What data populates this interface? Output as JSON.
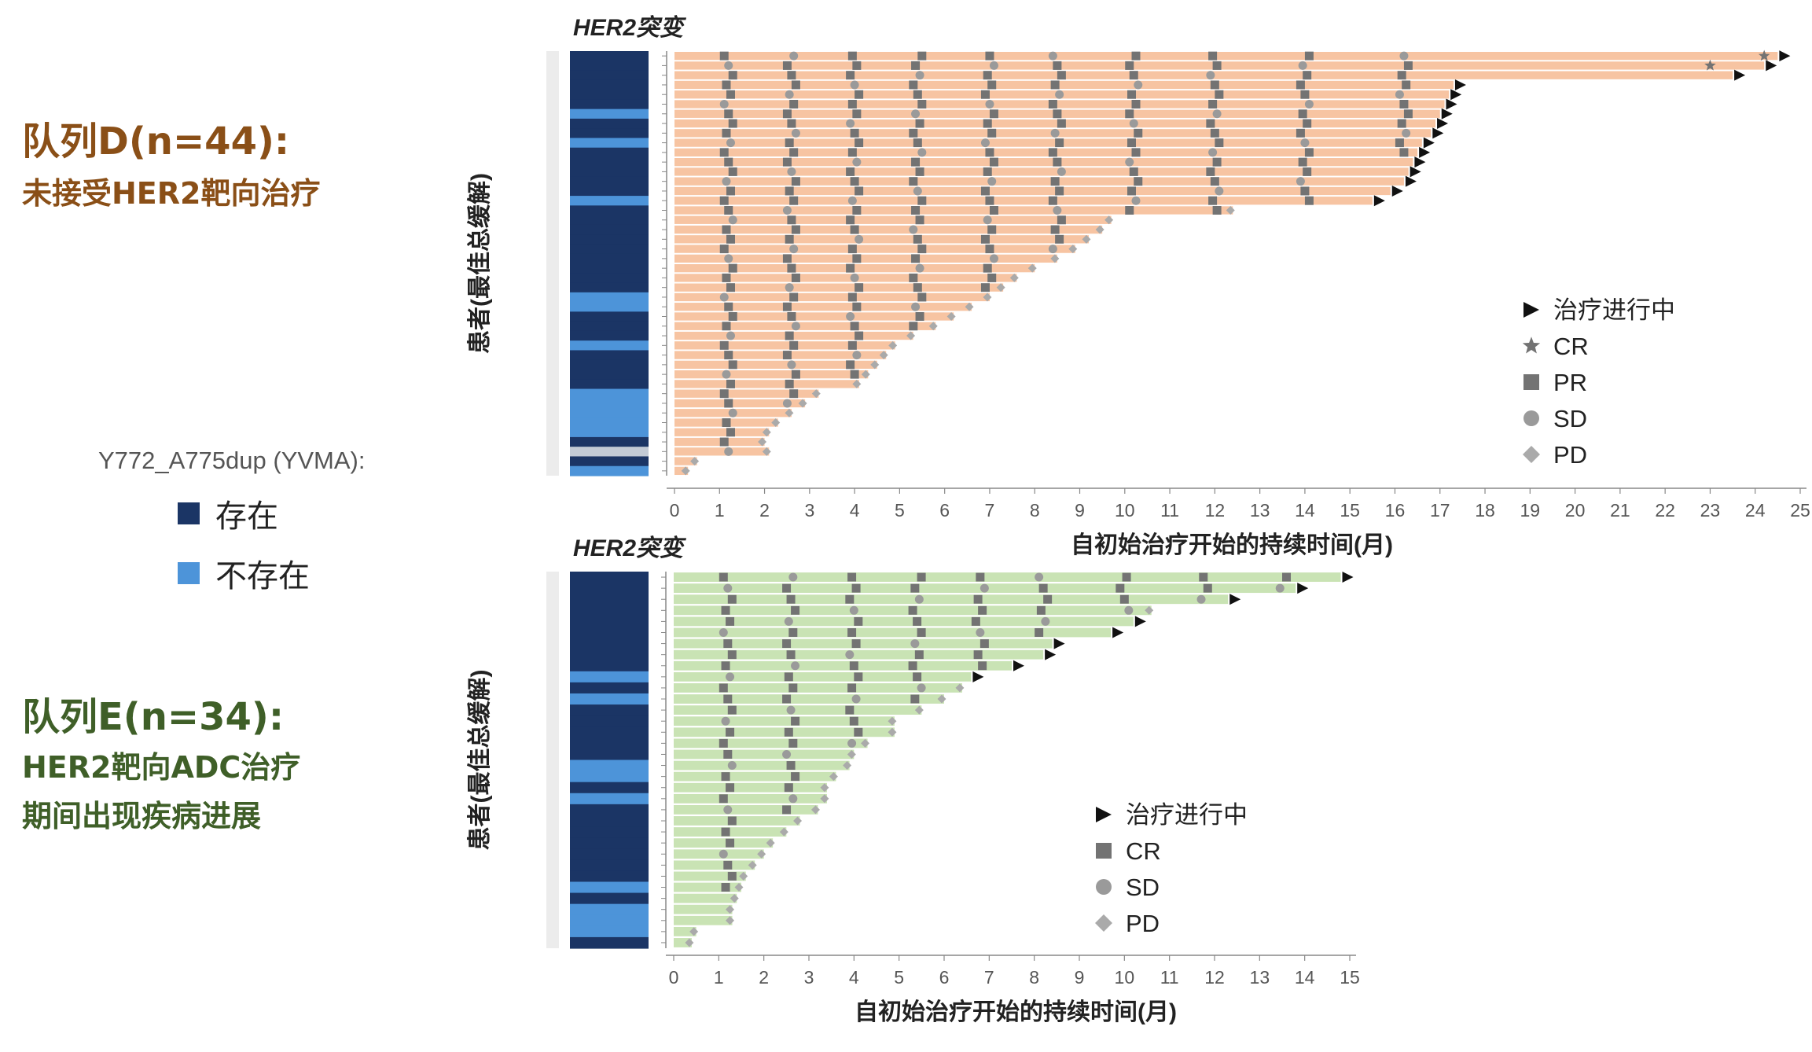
{
  "colors": {
    "present": "#1b3565",
    "absent": "#4d94d9",
    "other": "#c3cbd6",
    "barD": "#f7c4a2",
    "barE": "#c9e3b4",
    "marker": "#737373",
    "cohortD_text": "#8a4f17",
    "cohortE_text": "#3f5f28"
  },
  "left": {
    "cohortD_title": "队列D(n=44):",
    "cohortD_sub": "未接受HER2靶向治疗",
    "cohortE_title": "队列E(n=34):",
    "cohortE_sub1": "HER2靶向ADC治疗",
    "cohortE_sub2": "期间出现疾病进展"
  },
  "mutation_legend": {
    "title": "Y772_A775dup (YVMA):",
    "present": "存在",
    "absent": "不存在"
  },
  "chart_data": [
    {
      "type": "swimmer",
      "strip_title": "HER2突变",
      "xlabel": "自初始治疗开始的持续时间(月)",
      "ylabel": "患者(最佳总缓解)",
      "xlim": [
        0,
        25
      ],
      "xticks": [
        "0",
        "1",
        "2",
        "3",
        "4",
        "5",
        "6",
        "7",
        "8",
        "9",
        "10",
        "11",
        "12",
        "13",
        "14",
        "15",
        "16",
        "17",
        "18",
        "19",
        "20",
        "21",
        "22",
        "23",
        "24",
        "25"
      ],
      "legend": [
        {
          "symbol": "arrow",
          "label": "治疗进行中"
        },
        {
          "symbol": "star",
          "label": "CR"
        },
        {
          "symbol": "square",
          "label": "PR"
        },
        {
          "symbol": "circle",
          "label": "SD"
        },
        {
          "symbol": "diamond",
          "label": "PD"
        }
      ],
      "legend_position": "right",
      "patients": [
        {
          "duration": 24.5,
          "ongoing": true,
          "mutation": "present"
        },
        {
          "duration": 24.2,
          "ongoing": true,
          "mutation": "present"
        },
        {
          "duration": 23.5,
          "ongoing": true,
          "mutation": "present"
        },
        {
          "duration": 17.3,
          "ongoing": true,
          "mutation": "present"
        },
        {
          "duration": 17.2,
          "ongoing": true,
          "mutation": "present"
        },
        {
          "duration": 17.1,
          "ongoing": true,
          "mutation": "present"
        },
        {
          "duration": 17.0,
          "ongoing": true,
          "mutation": "absent"
        },
        {
          "duration": 16.9,
          "ongoing": true,
          "mutation": "present"
        },
        {
          "duration": 16.8,
          "ongoing": true,
          "mutation": "present"
        },
        {
          "duration": 16.6,
          "ongoing": true,
          "mutation": "absent"
        },
        {
          "duration": 16.5,
          "ongoing": true,
          "mutation": "present"
        },
        {
          "duration": 16.4,
          "ongoing": true,
          "mutation": "present"
        },
        {
          "duration": 16.3,
          "ongoing": true,
          "mutation": "present"
        },
        {
          "duration": 16.2,
          "ongoing": true,
          "mutation": "present"
        },
        {
          "duration": 15.9,
          "ongoing": true,
          "mutation": "present"
        },
        {
          "duration": 15.5,
          "ongoing": true,
          "mutation": "absent"
        },
        {
          "duration": 12.4,
          "ongoing": false,
          "mutation": "present"
        },
        {
          "duration": 9.7,
          "ongoing": false,
          "mutation": "present"
        },
        {
          "duration": 9.5,
          "ongoing": false,
          "mutation": "present"
        },
        {
          "duration": 9.2,
          "ongoing": false,
          "mutation": "present"
        },
        {
          "duration": 8.9,
          "ongoing": false,
          "mutation": "present"
        },
        {
          "duration": 8.5,
          "ongoing": false,
          "mutation": "present"
        },
        {
          "duration": 8.0,
          "ongoing": false,
          "mutation": "present"
        },
        {
          "duration": 7.6,
          "ongoing": false,
          "mutation": "present"
        },
        {
          "duration": 7.3,
          "ongoing": false,
          "mutation": "present"
        },
        {
          "duration": 7.0,
          "ongoing": false,
          "mutation": "absent"
        },
        {
          "duration": 6.6,
          "ongoing": false,
          "mutation": "absent"
        },
        {
          "duration": 6.2,
          "ongoing": false,
          "mutation": "present"
        },
        {
          "duration": 5.8,
          "ongoing": false,
          "mutation": "present"
        },
        {
          "duration": 5.3,
          "ongoing": false,
          "mutation": "present"
        },
        {
          "duration": 4.9,
          "ongoing": false,
          "mutation": "absent"
        },
        {
          "duration": 4.7,
          "ongoing": false,
          "mutation": "present"
        },
        {
          "duration": 4.5,
          "ongoing": false,
          "mutation": "present"
        },
        {
          "duration": 4.3,
          "ongoing": false,
          "mutation": "present"
        },
        {
          "duration": 4.1,
          "ongoing": false,
          "mutation": "present"
        },
        {
          "duration": 3.2,
          "ongoing": false,
          "mutation": "absent"
        },
        {
          "duration": 2.9,
          "ongoing": false,
          "mutation": "absent"
        },
        {
          "duration": 2.6,
          "ongoing": false,
          "mutation": "absent"
        },
        {
          "duration": 2.3,
          "ongoing": false,
          "mutation": "absent"
        },
        {
          "duration": 2.1,
          "ongoing": false,
          "mutation": "absent"
        },
        {
          "duration": 2.0,
          "ongoing": false,
          "mutation": "present"
        },
        {
          "duration": 2.1,
          "ongoing": false,
          "mutation": "other"
        },
        {
          "duration": 0.5,
          "ongoing": false,
          "mutation": "present"
        },
        {
          "duration": 0.3,
          "ongoing": false,
          "mutation": "absent"
        }
      ],
      "bar_color": "#f7c4a2"
    },
    {
      "type": "swimmer",
      "strip_title": "HER2突变",
      "xlabel": "自初始治疗开始的持续时间(月)",
      "ylabel": "患者(最佳总缓解)",
      "xlim": [
        0,
        15
      ],
      "xticks": [
        "0",
        "1",
        "2",
        "3",
        "4",
        "5",
        "6",
        "7",
        "8",
        "9",
        "10",
        "11",
        "12",
        "13",
        "14",
        "15"
      ],
      "legend": [
        {
          "symbol": "arrow",
          "label": "治疗进行中"
        },
        {
          "symbol": "square",
          "label": "CR"
        },
        {
          "symbol": "circle",
          "label": "SD"
        },
        {
          "symbol": "diamond",
          "label": "PD"
        }
      ],
      "legend_position": "bottom-right",
      "patients": [
        {
          "duration": 14.8,
          "ongoing": true,
          "mutation": "present"
        },
        {
          "duration": 13.8,
          "ongoing": true,
          "mutation": "present"
        },
        {
          "duration": 12.3,
          "ongoing": true,
          "mutation": "present"
        },
        {
          "duration": 10.6,
          "ongoing": false,
          "mutation": "present"
        },
        {
          "duration": 10.2,
          "ongoing": true,
          "mutation": "present"
        },
        {
          "duration": 9.7,
          "ongoing": true,
          "mutation": "present"
        },
        {
          "duration": 8.4,
          "ongoing": true,
          "mutation": "present"
        },
        {
          "duration": 8.2,
          "ongoing": true,
          "mutation": "present"
        },
        {
          "duration": 7.5,
          "ongoing": true,
          "mutation": "present"
        },
        {
          "duration": 6.6,
          "ongoing": true,
          "mutation": "absent"
        },
        {
          "duration": 6.4,
          "ongoing": false,
          "mutation": "present"
        },
        {
          "duration": 6.0,
          "ongoing": false,
          "mutation": "absent"
        },
        {
          "duration": 5.5,
          "ongoing": false,
          "mutation": "present"
        },
        {
          "duration": 4.9,
          "ongoing": false,
          "mutation": "present"
        },
        {
          "duration": 4.9,
          "ongoing": false,
          "mutation": "present"
        },
        {
          "duration": 4.3,
          "ongoing": false,
          "mutation": "present"
        },
        {
          "duration": 4.0,
          "ongoing": false,
          "mutation": "present"
        },
        {
          "duration": 3.9,
          "ongoing": false,
          "mutation": "absent"
        },
        {
          "duration": 3.6,
          "ongoing": false,
          "mutation": "absent"
        },
        {
          "duration": 3.4,
          "ongoing": false,
          "mutation": "present"
        },
        {
          "duration": 3.4,
          "ongoing": false,
          "mutation": "absent"
        },
        {
          "duration": 3.2,
          "ongoing": false,
          "mutation": "present"
        },
        {
          "duration": 2.8,
          "ongoing": false,
          "mutation": "present"
        },
        {
          "duration": 2.5,
          "ongoing": false,
          "mutation": "present"
        },
        {
          "duration": 2.2,
          "ongoing": false,
          "mutation": "present"
        },
        {
          "duration": 2.0,
          "ongoing": false,
          "mutation": "present"
        },
        {
          "duration": 1.8,
          "ongoing": false,
          "mutation": "present"
        },
        {
          "duration": 1.6,
          "ongoing": false,
          "mutation": "present"
        },
        {
          "duration": 1.5,
          "ongoing": false,
          "mutation": "absent"
        },
        {
          "duration": 1.4,
          "ongoing": false,
          "mutation": "present"
        },
        {
          "duration": 1.3,
          "ongoing": false,
          "mutation": "absent"
        },
        {
          "duration": 1.3,
          "ongoing": false,
          "mutation": "absent"
        },
        {
          "duration": 0.5,
          "ongoing": false,
          "mutation": "absent"
        },
        {
          "duration": 0.4,
          "ongoing": false,
          "mutation": "present"
        }
      ],
      "bar_color": "#c9e3b4"
    }
  ]
}
